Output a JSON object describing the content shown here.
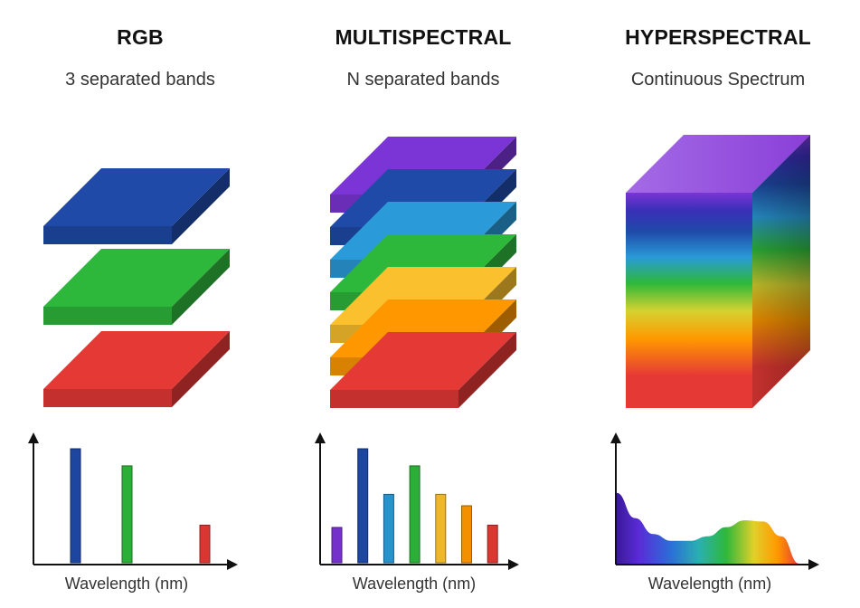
{
  "columns": [
    {
      "title": "RGB",
      "subtitle": "3 separated bands",
      "xlabel": "Wavelength (nm)"
    },
    {
      "title": "MULTISPECTRAL",
      "subtitle": "N separated bands",
      "xlabel": "Wavelength (nm)"
    },
    {
      "title": "HYPERSPECTRAL",
      "subtitle": "Continuous Spectrum",
      "xlabel": "Wavelength (nm)"
    }
  ],
  "colors": {
    "red": "#e53935",
    "orange": "#ff9800",
    "yellow": "#fbc02d",
    "green": "#2eb83b",
    "cyan": "#2a9ad8",
    "blue": "#1f4aa8",
    "violet": "#7b35d6"
  },
  "chart_data": [
    {
      "type": "bar",
      "title": "RGB",
      "xlabel": "Wavelength (nm)",
      "bands": [
        {
          "color": "blue",
          "value": 1.0
        },
        {
          "color": "green",
          "value": 0.85
        },
        {
          "color": "red",
          "value": 0.33
        }
      ]
    },
    {
      "type": "bar",
      "title": "MULTISPECTRAL",
      "xlabel": "Wavelength (nm)",
      "bands": [
        {
          "color": "violet",
          "value": 0.31
        },
        {
          "color": "blue",
          "value": 1.0
        },
        {
          "color": "cyan",
          "value": 0.6
        },
        {
          "color": "green",
          "value": 0.85
        },
        {
          "color": "yellow",
          "value": 0.6
        },
        {
          "color": "orange",
          "value": 0.5
        },
        {
          "color": "red",
          "value": 0.33
        }
      ]
    },
    {
      "type": "area",
      "title": "HYPERSPECTRAL",
      "xlabel": "Wavelength (nm)",
      "curve": [
        [
          0.0,
          0.62
        ],
        [
          0.1,
          0.4
        ],
        [
          0.2,
          0.26
        ],
        [
          0.3,
          0.2
        ],
        [
          0.4,
          0.2
        ],
        [
          0.5,
          0.24
        ],
        [
          0.6,
          0.32
        ],
        [
          0.7,
          0.38
        ],
        [
          0.8,
          0.37
        ],
        [
          0.9,
          0.24
        ],
        [
          1.0,
          0.0
        ]
      ]
    }
  ]
}
